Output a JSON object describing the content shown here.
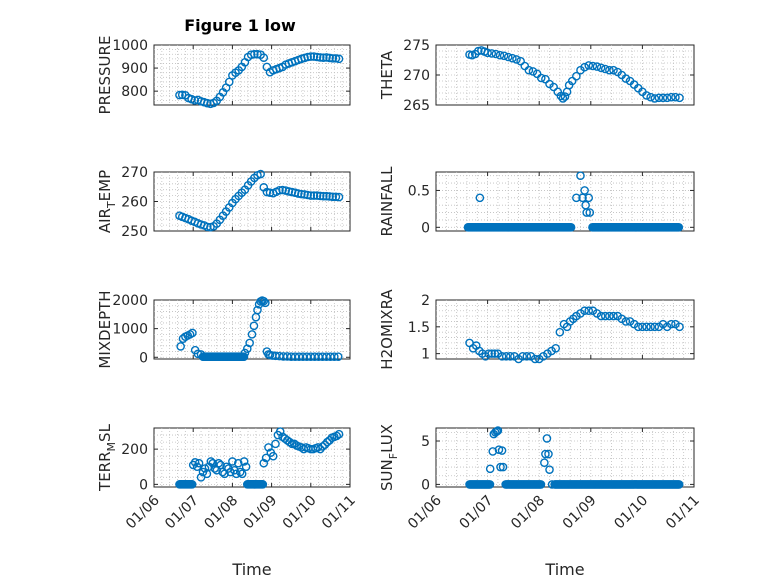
{
  "figure": {
    "title": "Figure 1 low",
    "accent_color": "#0072BD"
  },
  "chart_data": [
    {
      "type": "scatter",
      "id": "pressure",
      "ylabel": "PRESSURE",
      "ylabel_sub": "",
      "title": "Figure 1 low",
      "xlabel": "",
      "xlim": [
        0,
        5
      ],
      "ylim": [
        740,
        1000
      ],
      "yticks": [
        800,
        900,
        1000
      ],
      "xticks": [
        "01/06",
        "01/07",
        "01/08",
        "01/09",
        "01/10",
        "01/11"
      ],
      "show_xticklabels": false,
      "grid": true,
      "x": [
        0.65,
        0.72,
        0.8,
        0.88,
        0.96,
        1.04,
        1.12,
        1.2,
        1.28,
        1.36,
        1.44,
        1.52,
        1.6,
        1.68,
        1.76,
        1.84,
        1.92,
        2.0,
        2.08,
        2.16,
        2.24,
        2.32,
        2.4,
        2.48,
        2.56,
        2.64,
        2.72,
        2.8,
        2.88,
        2.96,
        3.04,
        3.12,
        3.2,
        3.28,
        3.36,
        3.44,
        3.52,
        3.6,
        3.68,
        3.76,
        3.84,
        3.92,
        4.0,
        4.08,
        4.16,
        4.24,
        4.32,
        4.4,
        4.48,
        4.56,
        4.64,
        4.72
      ],
      "y": [
        783,
        784,
        782,
        770,
        765,
        760,
        762,
        756,
        752,
        748,
        745,
        749,
        758,
        775,
        795,
        815,
        840,
        868,
        880,
        890,
        905,
        925,
        948,
        958,
        960,
        960,
        958,
        945,
        905,
        882,
        890,
        895,
        900,
        905,
        915,
        920,
        925,
        930,
        935,
        940,
        944,
        948,
        950,
        950,
        948,
        946,
        945,
        946,
        944,
        942,
        942,
        940
      ]
    },
    {
      "type": "scatter",
      "id": "theta",
      "ylabel": "THETA",
      "ylabel_sub": "",
      "xlabel": "",
      "xlim": [
        0,
        5
      ],
      "ylim": [
        265,
        275
      ],
      "yticks": [
        265,
        270,
        275
      ],
      "xticks": [
        "01/06",
        "01/07",
        "01/08",
        "01/09",
        "01/10",
        "01/11"
      ],
      "show_xticklabels": false,
      "grid": true,
      "x": [
        0.65,
        0.7,
        0.76,
        0.82,
        0.88,
        0.94,
        1.0,
        1.08,
        1.16,
        1.24,
        1.32,
        1.4,
        1.48,
        1.56,
        1.64,
        1.72,
        1.8,
        1.88,
        1.96,
        2.04,
        2.12,
        2.2,
        2.28,
        2.36,
        2.42,
        2.46,
        2.5,
        2.54,
        2.58,
        2.64,
        2.72,
        2.8,
        2.88,
        2.96,
        3.04,
        3.12,
        3.2,
        3.28,
        3.36,
        3.44,
        3.52,
        3.6,
        3.68,
        3.76,
        3.84,
        3.92,
        4.0,
        4.08,
        4.16,
        4.24,
        4.32,
        4.4,
        4.48,
        4.56,
        4.64,
        4.72
      ],
      "y": [
        273.4,
        273.3,
        273.5,
        274.0,
        274.1,
        273.9,
        273.7,
        273.6,
        273.5,
        273.3,
        273.2,
        273.0,
        272.8,
        272.6,
        272.3,
        271.5,
        270.8,
        270.6,
        270.2,
        269.5,
        269.3,
        268.5,
        268.0,
        267.2,
        266.5,
        266.1,
        266.4,
        267.2,
        268.3,
        269.0,
        269.8,
        270.8,
        271.3,
        271.6,
        271.5,
        271.4,
        271.2,
        271.0,
        270.8,
        270.8,
        270.5,
        270.0,
        269.4,
        269.0,
        268.4,
        267.8,
        267.2,
        266.6,
        266.3,
        266.1,
        266.2,
        266.2,
        266.2,
        266.3,
        266.3,
        266.2
      ]
    },
    {
      "type": "scatter",
      "id": "airtemp",
      "ylabel": "AIR",
      "ylabel_sub": "T",
      "ylabel_rest": "EMP",
      "xlabel": "",
      "xlim": [
        0,
        5
      ],
      "ylim": [
        250,
        270
      ],
      "yticks": [
        250,
        260,
        270
      ],
      "xticks": [
        "01/06",
        "01/07",
        "01/08",
        "01/09",
        "01/10",
        "01/11"
      ],
      "show_xticklabels": false,
      "grid": true,
      "x": [
        0.65,
        0.72,
        0.8,
        0.88,
        0.96,
        1.04,
        1.12,
        1.2,
        1.28,
        1.36,
        1.44,
        1.52,
        1.6,
        1.68,
        1.76,
        1.84,
        1.92,
        2.0,
        2.08,
        2.16,
        2.24,
        2.32,
        2.4,
        2.48,
        2.56,
        2.64,
        2.72,
        2.8,
        2.88,
        2.96,
        3.04,
        3.12,
        3.2,
        3.28,
        3.36,
        3.44,
        3.52,
        3.6,
        3.68,
        3.76,
        3.84,
        3.92,
        4.0,
        4.08,
        4.16,
        4.24,
        4.32,
        4.4,
        4.48,
        4.56,
        4.64,
        4.72
      ],
      "y": [
        255.2,
        254.8,
        254.4,
        254.0,
        253.5,
        253.1,
        252.6,
        252.2,
        251.9,
        251.4,
        251.3,
        251.6,
        252.5,
        253.8,
        255.2,
        256.6,
        258.0,
        259.5,
        260.8,
        261.9,
        263.0,
        264.0,
        265.5,
        266.8,
        268.0,
        268.9,
        269.3,
        264.8,
        263.2,
        263.0,
        262.8,
        263.3,
        263.8,
        263.9,
        263.7,
        263.4,
        263.2,
        263.0,
        262.7,
        262.5,
        262.4,
        262.2,
        262.0,
        262.0,
        262.0,
        261.9,
        261.8,
        261.8,
        261.7,
        261.6,
        261.6,
        261.5
      ]
    },
    {
      "type": "scatter",
      "id": "rainfall",
      "ylabel": "RAINFALL",
      "ylabel_sub": "",
      "xlabel": "",
      "xlim": [
        0,
        5
      ],
      "ylim": [
        -0.05,
        0.75
      ],
      "yticks": [
        0,
        0.5
      ],
      "xticks": [
        "01/06",
        "01/07",
        "01/08",
        "01/09",
        "01/10",
        "01/11"
      ],
      "show_xticklabels": false,
      "grid": true,
      "baseline_range": [
        0.62,
        4.72
      ],
      "baseline_gap": [
        2.62,
        3.02
      ],
      "baseline_value": 0,
      "x": [
        0.85,
        2.72,
        2.8,
        2.84,
        2.88,
        2.9,
        2.92,
        2.96,
        2.98
      ],
      "y": [
        0.4,
        0.4,
        0.7,
        0.4,
        0.5,
        0.3,
        0.2,
        0.4,
        0.2
      ]
    },
    {
      "type": "scatter",
      "id": "mixdepth",
      "ylabel": "MIXDEPTH",
      "ylabel_sub": "",
      "xlabel": "",
      "xlim": [
        0,
        5
      ],
      "ylim": [
        -60,
        2000
      ],
      "yticks": [
        0,
        1000,
        2000
      ],
      "xticks": [
        "01/06",
        "01/07",
        "01/08",
        "01/09",
        "01/10",
        "01/11"
      ],
      "show_xticklabels": false,
      "grid": true,
      "baseline_range": [
        1.25,
        2.3
      ],
      "baseline_value": 20,
      "x": [
        0.68,
        0.74,
        0.8,
        0.86,
        0.92,
        0.98,
        1.05,
        1.12,
        1.2,
        2.32,
        2.38,
        2.44,
        2.5,
        2.55,
        2.6,
        2.64,
        2.68,
        2.72,
        2.76,
        2.8,
        2.84,
        2.88,
        2.92,
        2.96,
        3.02,
        3.1,
        3.2,
        3.3,
        3.4,
        3.5,
        3.6,
        3.7,
        3.8,
        3.9,
        4.0,
        4.1,
        4.2,
        4.3,
        4.4,
        4.5,
        4.6,
        4.7
      ],
      "y": [
        380,
        650,
        720,
        760,
        800,
        850,
        250,
        120,
        100,
        150,
        300,
        500,
        800,
        1100,
        1400,
        1650,
        1850,
        1950,
        1980,
        1960,
        1900,
        200,
        100,
        80,
        60,
        50,
        40,
        30,
        30,
        20,
        20,
        20,
        20,
        20,
        20,
        20,
        20,
        20,
        20,
        20,
        20,
        20
      ]
    },
    {
      "type": "scatter",
      "id": "h2omixra",
      "ylabel": "H2OMIXRA",
      "ylabel_sub": "",
      "xlabel": "",
      "xlim": [
        0,
        5
      ],
      "ylim": [
        0.9,
        2.0
      ],
      "yticks": [
        1,
        1.5,
        2
      ],
      "xticks": [
        "01/06",
        "01/07",
        "01/08",
        "01/09",
        "01/10",
        "01/11"
      ],
      "show_xticklabels": false,
      "grid": true,
      "x": [
        0.65,
        0.72,
        0.78,
        0.84,
        0.9,
        0.96,
        1.02,
        1.08,
        1.14,
        1.2,
        1.28,
        1.36,
        1.44,
        1.52,
        1.6,
        1.68,
        1.76,
        1.84,
        1.92,
        2.0,
        2.08,
        2.16,
        2.24,
        2.32,
        2.4,
        2.48,
        2.54,
        2.6,
        2.66,
        2.72,
        2.8,
        2.88,
        2.96,
        3.04,
        3.12,
        3.2,
        3.28,
        3.36,
        3.44,
        3.52,
        3.6,
        3.68,
        3.76,
        3.84,
        3.92,
        4.0,
        4.08,
        4.16,
        4.24,
        4.32,
        4.4,
        4.48,
        4.56,
        4.64,
        4.72
      ],
      "y": [
        1.2,
        1.1,
        1.15,
        1.05,
        1.0,
        0.95,
        1.0,
        1.0,
        1.0,
        1.0,
        0.95,
        0.95,
        0.95,
        0.95,
        0.9,
        0.95,
        0.95,
        0.95,
        0.9,
        0.9,
        0.95,
        1.0,
        1.05,
        1.1,
        1.4,
        1.55,
        1.5,
        1.6,
        1.65,
        1.7,
        1.75,
        1.8,
        1.8,
        1.8,
        1.75,
        1.7,
        1.7,
        1.7,
        1.7,
        1.7,
        1.65,
        1.6,
        1.6,
        1.55,
        1.5,
        1.5,
        1.5,
        1.5,
        1.5,
        1.5,
        1.55,
        1.5,
        1.55,
        1.55,
        1.5
      ]
    },
    {
      "type": "scatter",
      "id": "terrmsl",
      "ylabel": "TERR",
      "ylabel_sub": "M",
      "ylabel_rest": "SL",
      "xlabel": "Time",
      "xlim": [
        0,
        5
      ],
      "ylim": [
        -15,
        320
      ],
      "yticks": [
        0,
        200
      ],
      "xticks": [
        "01/06",
        "01/07",
        "01/08",
        "01/09",
        "01/10",
        "01/11"
      ],
      "show_xticklabels": true,
      "grid": true,
      "baseline_range": [
        0.65,
        0.98
      ],
      "baseline_range2": [
        2.38,
        2.78
      ],
      "baseline_value": 0,
      "x": [
        1.0,
        1.05,
        1.1,
        1.15,
        1.2,
        1.25,
        1.3,
        1.35,
        1.4,
        1.45,
        1.5,
        1.55,
        1.6,
        1.65,
        1.7,
        1.75,
        1.8,
        1.85,
        1.9,
        1.95,
        2.0,
        2.05,
        2.1,
        2.15,
        2.2,
        2.25,
        2.3,
        2.35,
        2.8,
        2.86,
        2.92,
        2.98,
        3.04,
        3.1,
        3.16,
        3.22,
        3.28,
        3.34,
        3.4,
        3.46,
        3.52,
        3.58,
        3.64,
        3.7,
        3.76,
        3.82,
        3.88,
        3.94,
        4.0,
        4.06,
        4.12,
        4.18,
        4.24,
        4.3,
        4.36,
        4.42,
        4.48,
        4.54,
        4.6,
        4.66,
        4.72
      ],
      "y": [
        110,
        125,
        100,
        120,
        40,
        70,
        90,
        60,
        100,
        130,
        120,
        90,
        80,
        120,
        110,
        70,
        60,
        100,
        90,
        70,
        130,
        80,
        60,
        120,
        70,
        60,
        130,
        100,
        120,
        150,
        210,
        180,
        160,
        230,
        280,
        300,
        270,
        260,
        250,
        240,
        230,
        230,
        220,
        215,
        210,
        200,
        210,
        205,
        200,
        200,
        205,
        210,
        200,
        215,
        225,
        240,
        250,
        265,
        270,
        275,
        285
      ]
    },
    {
      "type": "scatter",
      "id": "sunflux",
      "ylabel": "SUN",
      "ylabel_sub": "F",
      "ylabel_rest": "LUX",
      "xlabel": "Time",
      "xlim": [
        0,
        5
      ],
      "ylim": [
        -0.3,
        6.5
      ],
      "yticks": [
        0,
        5
      ],
      "xticks": [
        "01/06",
        "01/07",
        "01/08",
        "01/09",
        "01/10",
        "01/11"
      ],
      "show_xticklabels": true,
      "grid": true,
      "baseline_range": [
        0.65,
        1.05
      ],
      "baseline_range2": [
        1.35,
        2.05
      ],
      "baseline_range3": [
        2.3,
        4.72
      ],
      "baseline_value": 0,
      "x": [
        1.05,
        1.1,
        1.12,
        1.15,
        1.18,
        1.2,
        1.22,
        1.25,
        1.28,
        1.3,
        2.1,
        2.12,
        2.15,
        2.18,
        2.2,
        2.25
      ],
      "y": [
        1.8,
        3.8,
        5.8,
        6.0,
        6.1,
        6.2,
        4.0,
        2.0,
        3.9,
        2.0,
        2.5,
        3.5,
        5.3,
        3.5,
        1.7,
        0.0
      ]
    }
  ]
}
